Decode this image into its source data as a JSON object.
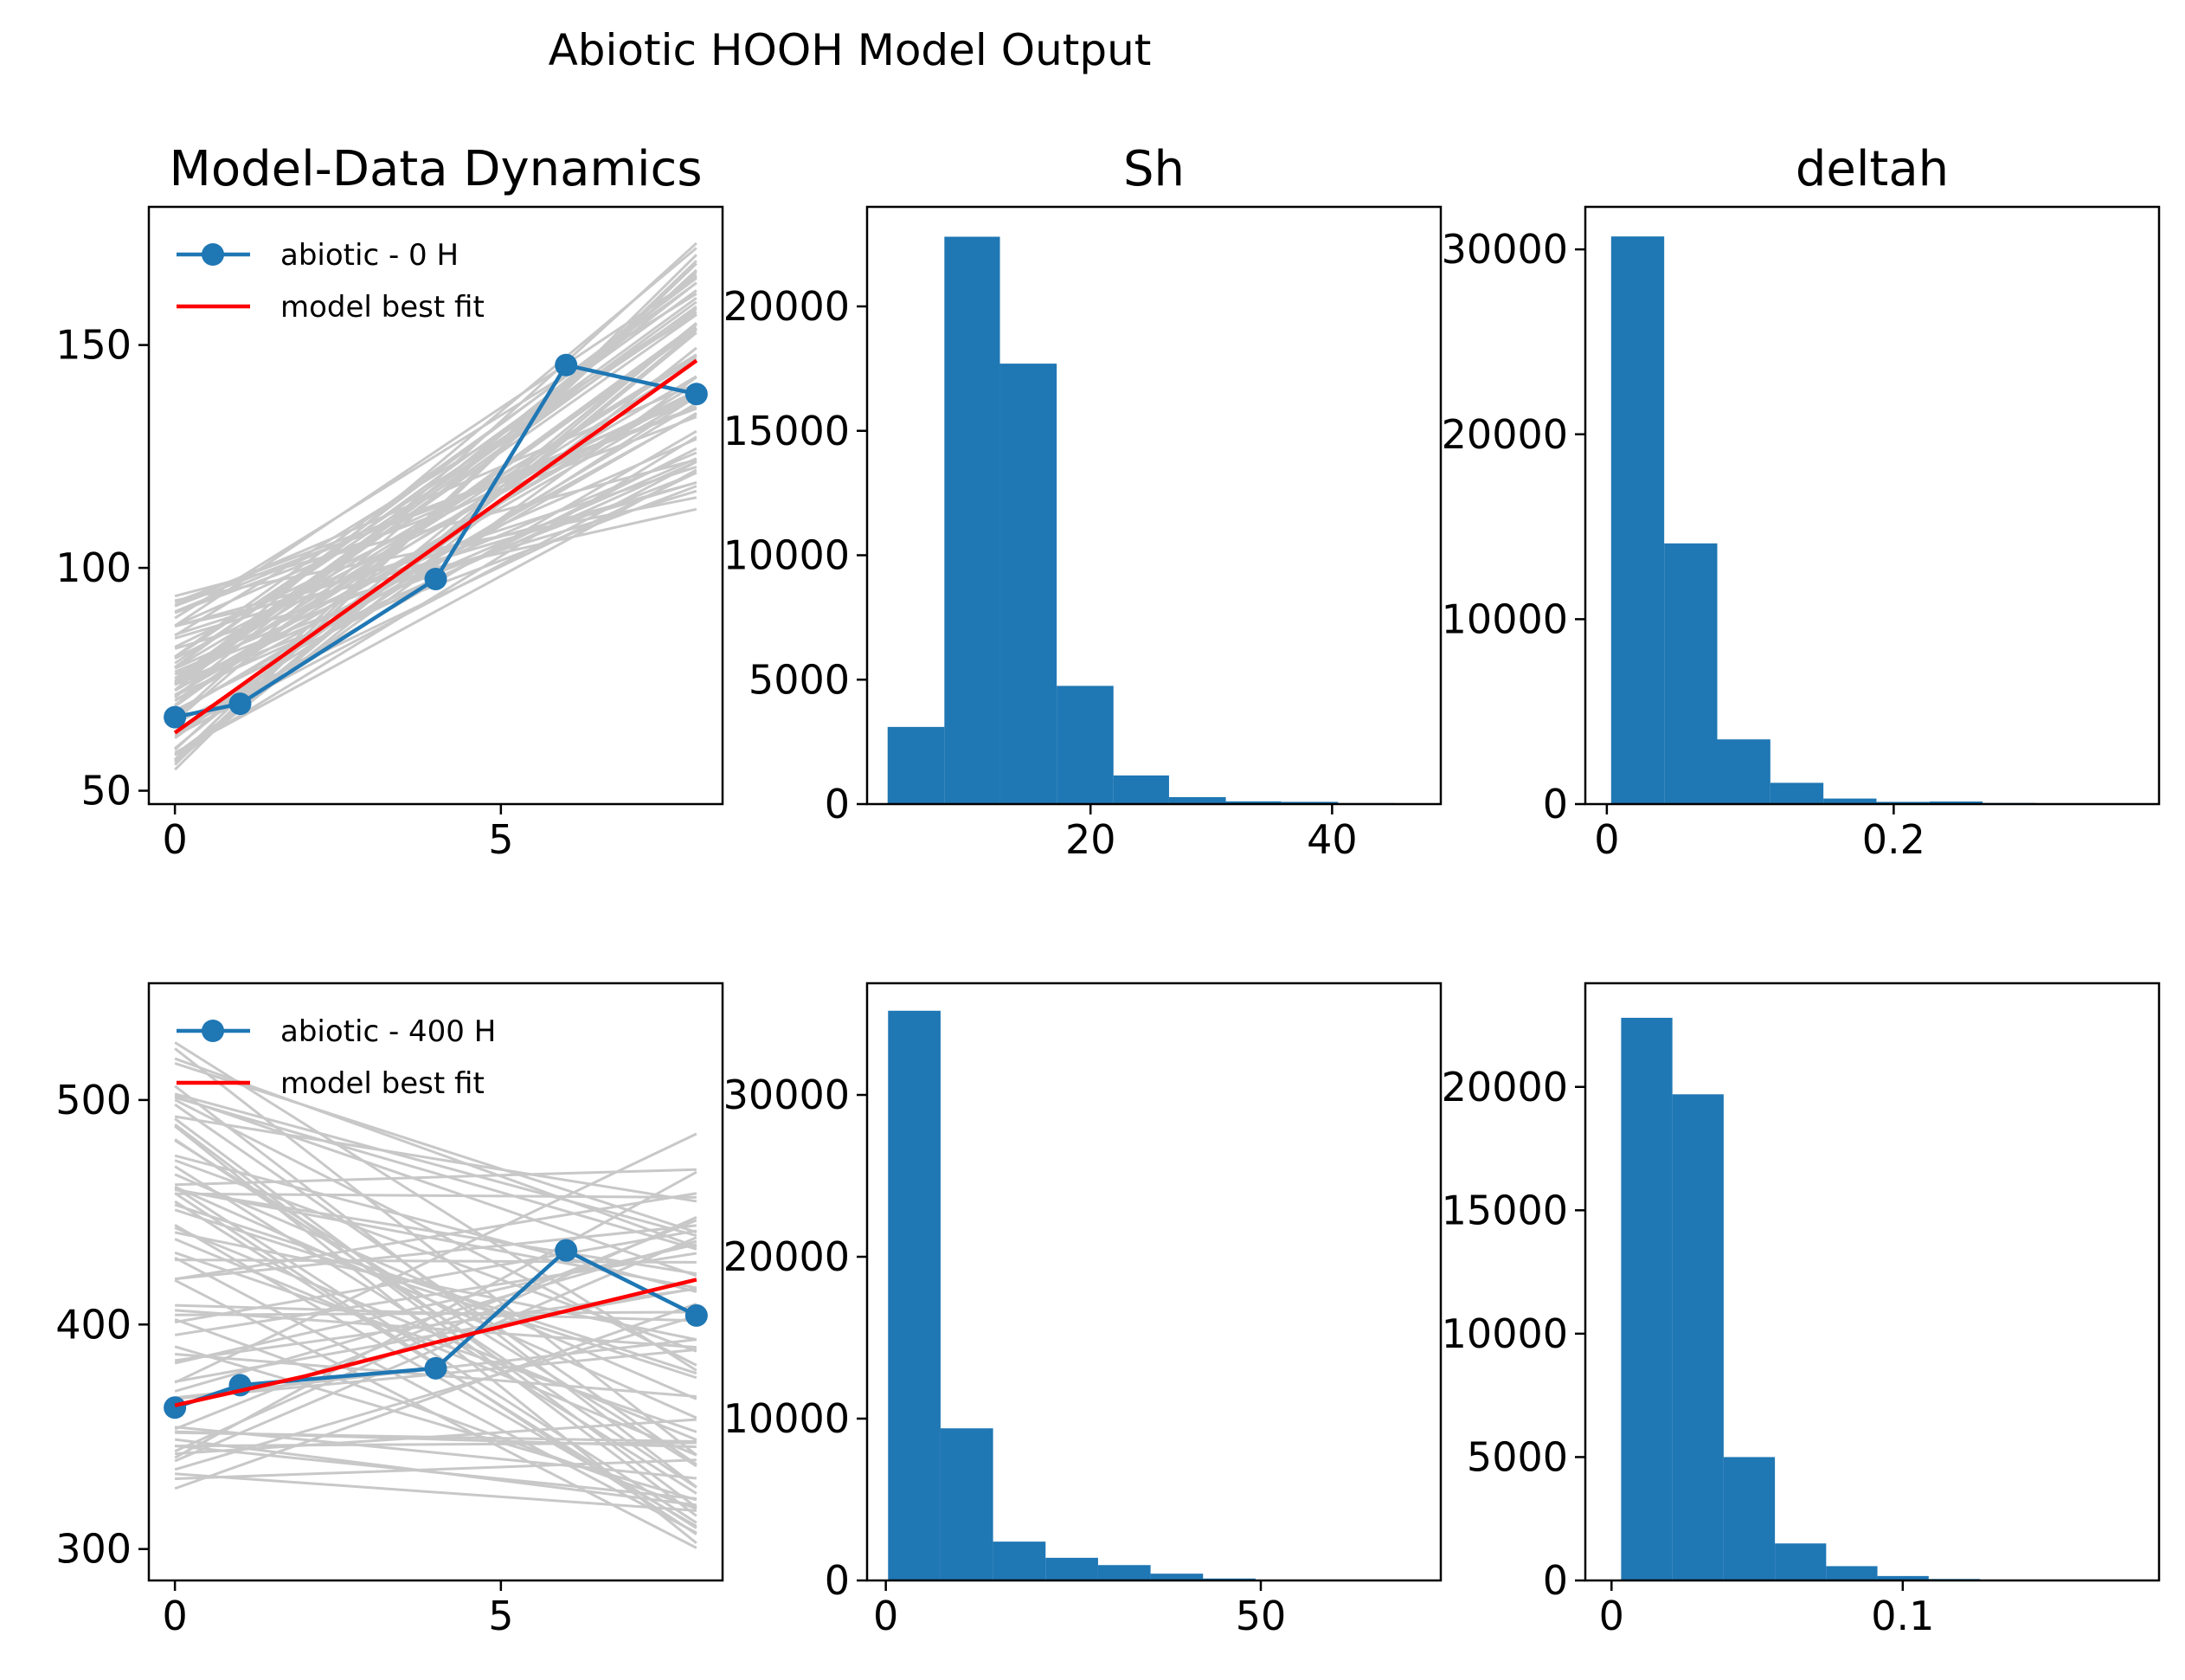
{
  "figure": {
    "title": "Abiotic HOOH Model Output"
  },
  "colors": {
    "data": "#1f77b4",
    "fit": "#ff0000",
    "ensemble": "#c8c8c8",
    "hist": "#1f77b4",
    "axis": "#000000"
  },
  "chart_data": [
    {
      "id": "dyn0",
      "type": "line",
      "title": "Model-Data Dynamics",
      "xlim": [
        -0.4,
        8.4
      ],
      "ylim": [
        47,
        181
      ],
      "xticks": [
        0,
        5
      ],
      "yticks": [
        50,
        100,
        150
      ],
      "legend": {
        "placement": "top-left",
        "entries": [
          "abiotic - 0 H",
          " model best fit"
        ]
      },
      "series": [
        {
          "name": "abiotic - 0 H",
          "style": "line-marker",
          "x": [
            0,
            1,
            4,
            6,
            8
          ],
          "y": [
            66.5,
            69.5,
            97.5,
            145.5,
            139
          ]
        },
        {
          "name": " model best fit",
          "style": "line",
          "x": [
            0,
            8
          ],
          "y": [
            63,
            146.5
          ]
        }
      ],
      "ensemble": {
        "count": 70,
        "x_range": [
          0,
          8
        ],
        "y0_range": [
          54,
          95
        ],
        "y1_range": [
          112,
          174
        ],
        "shape": "linear"
      }
    },
    {
      "id": "sh0",
      "type": "bar",
      "title": "Sh",
      "xlim": [
        1.5,
        49
      ],
      "ylim": [
        0,
        24000
      ],
      "xticks": [
        20,
        40
      ],
      "yticks": [
        0,
        5000,
        10000,
        15000,
        20000
      ],
      "bins": [
        [
          3.2,
          7.9
        ],
        [
          7.9,
          12.5
        ],
        [
          12.5,
          17.2
        ],
        [
          17.2,
          21.9
        ],
        [
          21.9,
          26.5
        ],
        [
          26.5,
          31.2
        ],
        [
          31.2,
          35.8
        ],
        [
          35.8,
          40.5
        ],
        [
          40.5,
          45.2
        ]
      ],
      "values": [
        3100,
        22800,
        17700,
        4750,
        1150,
        280,
        110,
        90,
        40
      ]
    },
    {
      "id": "deltah0",
      "type": "bar",
      "title": "deltah",
      "xlim": [
        -0.015,
        0.385
      ],
      "ylim": [
        0,
        32300
      ],
      "xticks": [
        0.0,
        0.2
      ],
      "yticks": [
        0,
        10000,
        20000,
        30000
      ],
      "bins": [
        [
          0.003,
          0.04
        ],
        [
          0.04,
          0.077
        ],
        [
          0.077,
          0.114
        ],
        [
          0.114,
          0.151
        ],
        [
          0.151,
          0.188
        ],
        [
          0.188,
          0.225
        ],
        [
          0.225,
          0.262
        ],
        [
          0.262,
          0.299
        ],
        [
          0.299,
          0.336
        ]
      ],
      "values": [
        30700,
        14100,
        3500,
        1150,
        300,
        120,
        140,
        60,
        30
      ]
    },
    {
      "id": "dyn400",
      "type": "line",
      "title": "",
      "xlim": [
        -0.4,
        8.4
      ],
      "ylim": [
        286,
        552
      ],
      "xticks": [
        0,
        5
      ],
      "yticks": [
        300,
        400,
        500
      ],
      "legend": {
        "placement": "top-left",
        "entries": [
          "abiotic - 400 H",
          " model best fit"
        ]
      },
      "series": [
        {
          "name": "abiotic - 400 H",
          "style": "line-marker",
          "x": [
            0,
            1,
            4,
            6,
            8
          ],
          "y": [
            363,
            373,
            380.5,
            433,
            404
          ]
        },
        {
          "name": " model best fit",
          "style": "line",
          "x": [
            0,
            2,
            4,
            6,
            8
          ],
          "y": [
            364,
            377,
            392,
            406,
            420
          ]
        }
      ],
      "ensemble": {
        "count": 70,
        "x_range": [
          0,
          8
        ],
        "y0_range": [
          321,
          540
        ],
        "y1_range": [
          297,
          487
        ],
        "shape": "linear"
      }
    },
    {
      "id": "sh400",
      "type": "bar",
      "title": "",
      "xlim": [
        -2.5,
        74
      ],
      "ylim": [
        0,
        36900
      ],
      "xticks": [
        0,
        50
      ],
      "yticks": [
        0,
        10000,
        20000,
        30000
      ],
      "bins": [
        [
          0.3,
          7.3
        ],
        [
          7.3,
          14.3
        ],
        [
          14.3,
          21.3
        ],
        [
          21.3,
          28.3
        ],
        [
          28.3,
          35.3
        ],
        [
          35.3,
          42.3
        ],
        [
          42.3,
          49.3
        ],
        [
          49.3,
          56.3
        ],
        [
          56.3,
          63.3
        ]
      ],
      "values": [
        35200,
        9400,
        2400,
        1400,
        950,
        420,
        120,
        50,
        20
      ]
    },
    {
      "id": "deltah400",
      "type": "bar",
      "title": "",
      "xlim": [
        -0.009,
        0.188
      ],
      "ylim": [
        0,
        24200
      ],
      "xticks": [
        0.0,
        0.1
      ],
      "yticks": [
        0,
        5000,
        10000,
        15000,
        20000
      ],
      "bins": [
        [
          0.0033,
          0.0209
        ],
        [
          0.0209,
          0.0385
        ],
        [
          0.0385,
          0.0561
        ],
        [
          0.0561,
          0.0737
        ],
        [
          0.0737,
          0.0913
        ],
        [
          0.0913,
          0.1089
        ],
        [
          0.1089,
          0.1265
        ],
        [
          0.1265,
          0.1441
        ],
        [
          0.1441,
          0.1617
        ]
      ],
      "values": [
        22800,
        19700,
        5000,
        1500,
        580,
        180,
        60,
        30,
        10
      ]
    }
  ]
}
